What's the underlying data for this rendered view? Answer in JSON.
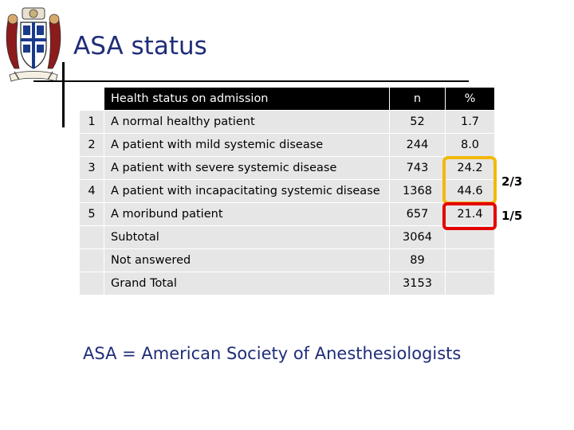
{
  "slide": {
    "title": "ASA status",
    "footnote": "ASA = American Society of Anesthesiologists",
    "annotations": {
      "two_thirds": "2/3",
      "one_fifth": "1/5"
    }
  },
  "table": {
    "headers": [
      "",
      "Health status on admission",
      "n",
      "%"
    ],
    "rows": [
      [
        "1",
        "A normal healthy patient",
        "52",
        "1.7"
      ],
      [
        "2",
        "A patient with mild systemic disease",
        "244",
        "8.0"
      ],
      [
        "3",
        "A patient with severe systemic disease",
        "743",
        "24.2"
      ],
      [
        "4",
        "A patient with incapacitating systemic disease",
        "1368",
        "44.6"
      ],
      [
        "5",
        "A moribund patient",
        "657",
        "21.4"
      ],
      [
        "",
        "Subtotal",
        "3064",
        ""
      ],
      [
        "",
        "Not answered",
        "89",
        ""
      ],
      [
        "",
        "Grand Total",
        "3153",
        ""
      ]
    ]
  },
  "colors": {
    "title": "#1f2d78",
    "header_bg": "#000000",
    "row_bg": "#e6e6e6",
    "highlight_gold": "#f2b90d",
    "highlight_red": "#e50000"
  },
  "icons": {
    "logo": "coat-of-arms-crest"
  }
}
